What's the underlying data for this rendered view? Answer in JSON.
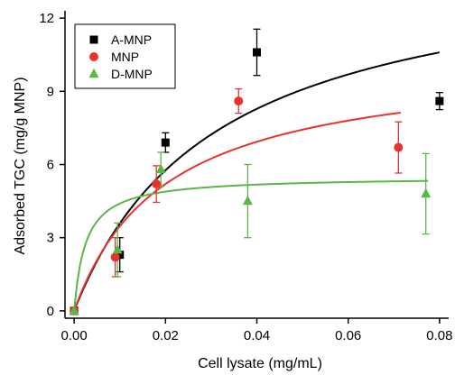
{
  "chart_data": {
    "type": "scatter",
    "title": "",
    "xlabel": "Cell lysate (mg/mL)",
    "ylabel": "Adsorbed TGC (mg/g MNP)",
    "xlim": [
      -0.002,
      0.082
    ],
    "ylim": [
      -0.3,
      12.3
    ],
    "xticks": [
      0.0,
      0.02,
      0.04,
      0.06,
      0.08
    ],
    "xtick_labels": [
      "0.00",
      "0.02",
      "0.04",
      "0.06",
      "0.08"
    ],
    "yticks": [
      0,
      3,
      6,
      9,
      12
    ],
    "ytick_labels": [
      "0",
      "3",
      "6",
      "9",
      "12"
    ],
    "grid": false,
    "legend_position": "top-left",
    "series": [
      {
        "name": "A-MNP",
        "marker": "square",
        "color": "#000000",
        "points": [
          {
            "x": 0.0,
            "y": 0.0,
            "err": 0.0
          },
          {
            "x": 0.01,
            "y": 2.3,
            "err": 0.7
          },
          {
            "x": 0.02,
            "y": 6.9,
            "err": 0.4
          },
          {
            "x": 0.04,
            "y": 10.6,
            "err": 0.95
          },
          {
            "x": 0.08,
            "y": 8.6,
            "err": 0.35
          }
        ],
        "fit_curve": {
          "model": "langmuir",
          "qmax": 14.7,
          "k": 0.031,
          "x_range": [
            0.0,
            0.08
          ]
        }
      },
      {
        "name": "MNP",
        "marker": "circle",
        "color": "#e8322d",
        "points": [
          {
            "x": 0.0,
            "y": 0.0,
            "err": 0.0
          },
          {
            "x": 0.009,
            "y": 2.2,
            "err": 0.8
          },
          {
            "x": 0.018,
            "y": 5.2,
            "err": 0.75
          },
          {
            "x": 0.036,
            "y": 8.6,
            "err": 0.5
          },
          {
            "x": 0.071,
            "y": 6.7,
            "err": 1.05
          }
        ],
        "fit_curve": {
          "model": "langmuir",
          "qmax": 10.4,
          "k": 0.02,
          "x_range": [
            0.0,
            0.0715
          ]
        }
      },
      {
        "name": "D-MNP",
        "marker": "triangle",
        "color": "#5cb548",
        "points": [
          {
            "x": 0.0,
            "y": 0.0,
            "err": 0.0
          },
          {
            "x": 0.0095,
            "y": 2.5,
            "err": 1.1
          },
          {
            "x": 0.019,
            "y": 5.8,
            "err": 0.7
          },
          {
            "x": 0.038,
            "y": 4.5,
            "err": 1.5
          },
          {
            "x": 0.077,
            "y": 4.8,
            "err": 1.65
          }
        ],
        "fit_curve": {
          "model": "langmuir",
          "qmax": 5.5,
          "k": 0.0025,
          "x_range": [
            0.0,
            0.0775
          ]
        }
      }
    ]
  }
}
